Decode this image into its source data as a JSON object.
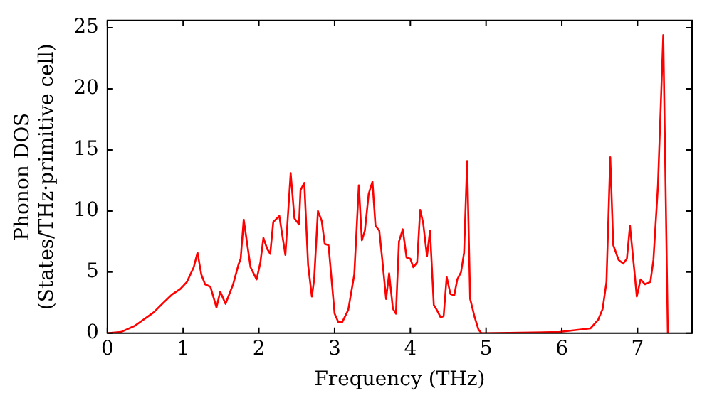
{
  "chart_data": {
    "type": "line",
    "xlabel": "Frequency (THz)",
    "ylabel": "Phonon DOS\n(States/THz·primitive cell)",
    "xlim": [
      0,
      7.72
    ],
    "ylim": [
      0,
      25.6
    ],
    "xticks": [
      0,
      1,
      2,
      3,
      4,
      5,
      6,
      7
    ],
    "yticks": [
      0,
      5,
      10,
      15,
      20,
      25
    ],
    "grid": false,
    "legend": false,
    "marker": "none",
    "line_style": "solid",
    "series": [
      {
        "color": "#ff0000",
        "x": [
          0,
          0.18,
          0.36,
          0.61,
          0.74,
          0.86,
          0.96,
          1.05,
          1.14,
          1.19,
          1.24,
          1.29,
          1.36,
          1.44,
          1.49,
          1.56,
          1.66,
          1.73,
          1.76,
          1.8,
          1.89,
          1.97,
          2.02,
          2.06,
          2.11,
          2.15,
          2.19,
          2.27,
          2.28,
          2.35,
          2.42,
          2.47,
          2.53,
          2.55,
          2.6,
          2.65,
          2.7,
          2.73,
          2.78,
          2.83,
          2.87,
          2.92,
          2.96,
          3.0,
          3.05,
          3.1,
          3.18,
          3.26,
          3.32,
          3.36,
          3.4,
          3.45,
          3.5,
          3.54,
          3.59,
          3.63,
          3.68,
          3.72,
          3.77,
          3.81,
          3.85,
          3.9,
          3.95,
          4.0,
          4.04,
          4.09,
          4.13,
          4.17,
          4.22,
          4.26,
          4.31,
          4.35,
          4.4,
          4.44,
          4.48,
          4.53,
          4.58,
          4.62,
          4.67,
          4.71,
          4.75,
          4.79,
          4.85,
          4.9,
          4.94,
          5.0,
          5.97,
          6.38,
          6.48,
          6.54,
          6.59,
          6.64,
          6.68,
          6.75,
          6.81,
          6.86,
          6.9,
          6.96,
          6.99,
          7.04,
          7.1,
          7.17,
          7.21,
          7.27,
          7.34,
          7.4
        ],
        "values": [
          0,
          0.1,
          0.6,
          1.7,
          2.5,
          3.2,
          3.6,
          4.2,
          5.4,
          6.6,
          4.8,
          4.0,
          3.8,
          2.1,
          3.4,
          2.4,
          4.0,
          5.6,
          6.1,
          9.3,
          5.4,
          4.4,
          5.8,
          7.8,
          6.9,
          6.5,
          9.1,
          9.6,
          9.6,
          6.4,
          13.1,
          9.4,
          8.9,
          11.7,
          12.3,
          5.6,
          3.0,
          4.4,
          10.0,
          9.2,
          7.3,
          7.2,
          4.4,
          1.6,
          0.9,
          0.9,
          1.9,
          4.8,
          12.1,
          7.6,
          8.4,
          11.4,
          12.4,
          8.8,
          8.4,
          6.0,
          2.8,
          4.9,
          2.0,
          1.6,
          7.5,
          8.5,
          6.2,
          6.1,
          5.4,
          5.8,
          10.1,
          9.0,
          6.3,
          8.4,
          2.3,
          1.9,
          1.3,
          1.4,
          4.6,
          3.2,
          3.1,
          4.4,
          5.0,
          6.6,
          14.1,
          2.8,
          1.3,
          0.3,
          0,
          0,
          0.1,
          0.4,
          1.1,
          2.0,
          4.2,
          14.4,
          7.2,
          6.0,
          5.7,
          6.1,
          8.8,
          5.0,
          3.0,
          4.4,
          4.0,
          4.2,
          6.0,
          12.1,
          24.4,
          0
        ]
      }
    ]
  }
}
